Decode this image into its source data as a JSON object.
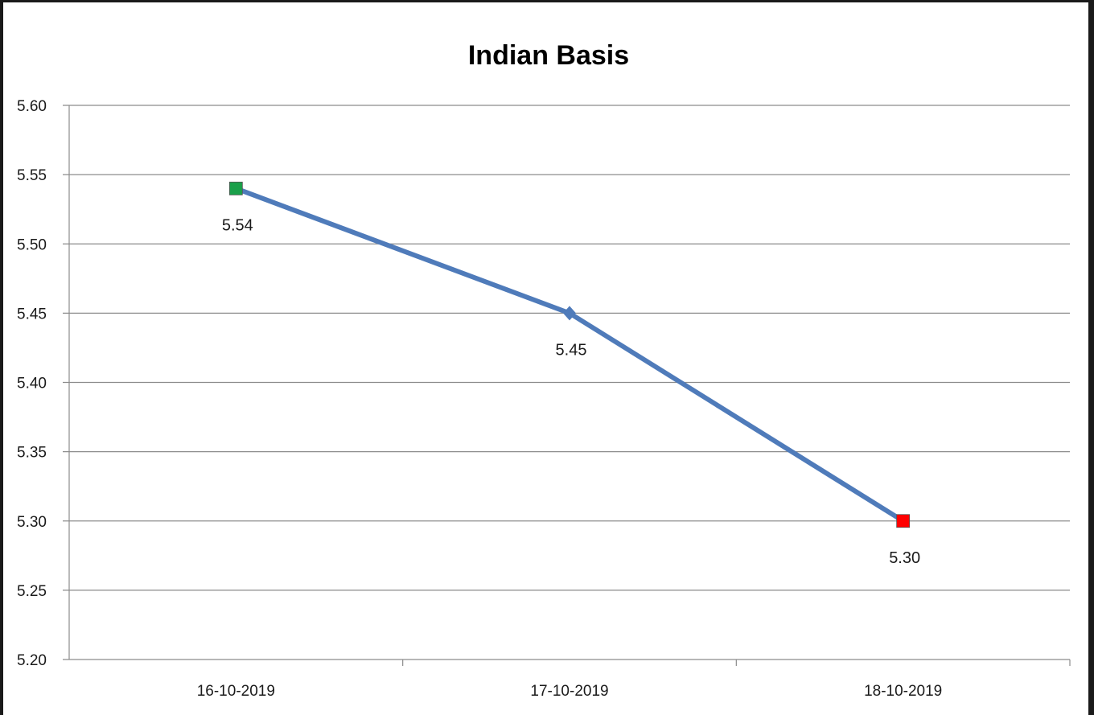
{
  "chart_data": {
    "type": "line",
    "title": "Indian Basis",
    "xlabel": "",
    "ylabel": "",
    "categories": [
      "16-10-2019",
      "17-10-2019",
      "18-10-2019"
    ],
    "series": [
      {
        "values": [
          5.54,
          5.45,
          5.3
        ],
        "data_labels": [
          "5.54",
          "5.45",
          "5.30"
        ],
        "color": "#4f7bba",
        "marker_colors": [
          "#1aa04a",
          "#4f7bba",
          "#ff0000"
        ],
        "marker_shapes": [
          "square",
          "diamond",
          "square"
        ]
      }
    ],
    "ylim": [
      5.2,
      5.6
    ],
    "yticks": [
      "5.20",
      "5.25",
      "5.30",
      "5.35",
      "5.40",
      "5.45",
      "5.50",
      "5.55",
      "5.60"
    ],
    "grid": true,
    "legend": "none"
  }
}
